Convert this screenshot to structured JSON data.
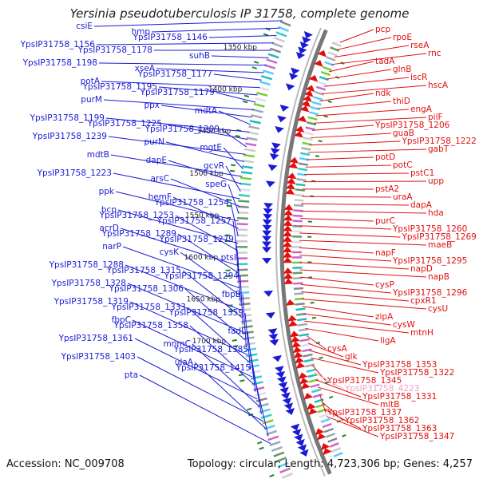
{
  "title": "Yersinia pseudotuberculosis IP 31758, complete genome",
  "footer": {
    "accession": "Accession: NC_009708",
    "summary": "Topology: circular; Length: 4,723,306 bp; Genes: 4,257"
  },
  "colors": {
    "forward": "#1a1ad6",
    "reverse": "#e01010",
    "pseudo": "#f0a0c8",
    "backbone": "#777777",
    "tick": "#1f8a1f"
  },
  "scale_labels": [
    "1350 kbp",
    "1400 kbp",
    "1450 kbp",
    "1500 kbp",
    "1550 kbp",
    "1600 kbp",
    "1650 kbp",
    "1700 kbp"
  ],
  "forward_labels": [
    "csiE",
    "hmp",
    "YpsIP31758_1146",
    "YpsIP31758_1156",
    "YpsIP31758_1178",
    "suhB",
    "YpsIP31758_1198",
    "xseA",
    "YpsIP31758_1177",
    "potA",
    "YpsIP31758_1195",
    "YpsIP31758_1179",
    "purM",
    "ppx",
    "mdtA",
    "YpsIP31758_1199",
    "YpsIP31758_1225",
    "YpsIP31758_1209",
    "YpsIP31758_1239",
    "purN",
    "mgtE",
    "mdtB",
    "dapE",
    "gcvR",
    "YpsIP31758_1223",
    "arsC",
    "speG",
    "ppk",
    "hemF",
    "YpsIP31758_1254",
    "bcp",
    "YpsIP31758_1253",
    "YpsIP31758_1257",
    "acrD",
    "YpsIP31758_1289",
    "YpsIP31758_1279",
    "narP",
    "cysK",
    "ptsI",
    "YpsIP31758_1288",
    "YpsIP31758_1315",
    "YpsIP31758_1294",
    "YpsIP31758_1328",
    "YpsIP31758_1306",
    "fbpB",
    "YpsIP31758_1319",
    "YpsIP31758_1333",
    "YpsIP31758_1359",
    "fbpC",
    "YpsIP31758_1358",
    "fadL",
    "YpsIP31758_1361",
    "mnmC",
    "YpsIP31758_1385",
    "YpsIP31758_1403",
    "ulaA",
    "YpsIP31758_1415",
    "pta"
  ],
  "reverse_labels": [
    "pcp",
    "rpoE",
    "rseA",
    "rnc",
    "tadA",
    "glnB",
    "iscR",
    "hscA",
    "ndk",
    "thiD",
    "engA",
    "pilF",
    "YpsIP31758_1206",
    "guaB",
    "YpsIP31758_1222",
    "gabT",
    "potD",
    "potC",
    "pstC1",
    "upp",
    "pstA2",
    "uraA",
    "dapA",
    "hda",
    "purC",
    "YpsIP31758_1260",
    "YpsIP31758_1269",
    "maeB",
    "napF",
    "YpsIP31758_1295",
    "napD",
    "napB",
    "cysP",
    "YpsIP31758_1296",
    "cpxR1",
    "cysU",
    "zipA",
    "cysW",
    "mtnH",
    "ligA",
    "cysA",
    "glk",
    "YpsIP31758_1353",
    "YpsIP31758_1322",
    "YpsIP31758_1345",
    "YpsIP31758_4223",
    "YpsIP31758_1331",
    "mltB",
    "YpsIP31758_1337",
    "YpsIP31758_1362",
    "YpsIP31758_1363",
    "YpsIP31758_1347"
  ]
}
